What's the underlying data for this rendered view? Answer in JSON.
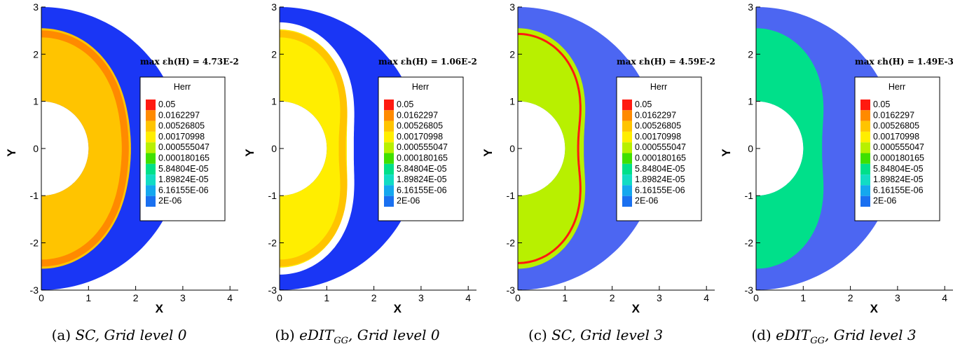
{
  "chart_data": [
    {
      "type": "heatmap",
      "annotation": "max εh(H) = 4.73E-2",
      "caption": {
        "label": "(a)",
        "method": "SC",
        "method_sub": "",
        "grid": "Grid level 0"
      },
      "xlabel": "X",
      "ylabel": "Y",
      "xlim": [
        0,
        4.3
      ],
      "ylim": [
        -3,
        3
      ],
      "xticks": [
        "0",
        "1",
        "2",
        "3",
        "4"
      ],
      "yticks": [
        "3",
        "2",
        "1",
        "0",
        "-1",
        "-2",
        "-3"
      ],
      "legend": {
        "title": "Herr",
        "levels": [
          "0.05",
          "0.0162297",
          "0.00526805",
          "0.00170998",
          "0.000555047",
          "0.000180165",
          "5.84804E-05",
          "1.89824E-05",
          "6.16155E-06",
          "2E-06"
        ]
      },
      "field": {
        "inner_radius": 1,
        "outer_radius": 3,
        "shock_radius_equator": 1.9,
        "mesh": "coarse",
        "gap": false,
        "interior_level_index": 2,
        "shock_level_index": 1
      }
    },
    {
      "type": "heatmap",
      "annotation": "max εh(H) = 1.06E-2",
      "caption": {
        "label": "(b)",
        "method": "eDIT",
        "method_sub": "GG",
        "grid": "Grid level 0"
      },
      "xlabel": "X",
      "ylabel": "Y",
      "xlim": [
        0,
        4.3
      ],
      "ylim": [
        -3,
        3
      ],
      "xticks": [
        "0",
        "1",
        "2",
        "3",
        "4"
      ],
      "yticks": [
        "3",
        "2",
        "1",
        "0",
        "-1",
        "-2",
        "-3"
      ],
      "legend": {
        "title": "Herr",
        "levels": [
          "0.05",
          "0.0162297",
          "0.00526805",
          "0.00170998",
          "0.000555047",
          "0.000180165",
          "5.84804E-05",
          "1.89824E-05",
          "6.16155E-06",
          "2E-06"
        ]
      },
      "field": {
        "inner_radius": 1,
        "outer_radius": 3,
        "shock_radius_equator": 1.45,
        "mesh": "coarse",
        "gap": true,
        "interior_level_index": 3,
        "shock_level_index": 2
      }
    },
    {
      "type": "heatmap",
      "annotation": "max εh(H) = 4.59E-2",
      "caption": {
        "label": "(c)",
        "method": "SC",
        "method_sub": "",
        "grid": "Grid level 3"
      },
      "xlabel": "X",
      "ylabel": "Y",
      "xlim": [
        0,
        4.3
      ],
      "ylim": [
        -3,
        3
      ],
      "xticks": [
        "0",
        "1",
        "2",
        "3",
        "4"
      ],
      "yticks": [
        "3",
        "2",
        "1",
        "0",
        "-1",
        "-2",
        "-3"
      ],
      "legend": {
        "title": "Herr",
        "levels": [
          "0.05",
          "0.0162297",
          "0.00526805",
          "0.00170998",
          "0.000555047",
          "0.000180165",
          "5.84804E-05",
          "1.89824E-05",
          "6.16155E-06",
          "2E-06"
        ]
      },
      "field": {
        "inner_radius": 1,
        "outer_radius": 3,
        "shock_radius_equator": 1.4,
        "mesh": "fine",
        "gap": false,
        "interior_level_index": 4,
        "shock_level_index": 0
      }
    },
    {
      "type": "heatmap",
      "annotation": "max εh(H) = 1.49E-3",
      "caption": {
        "label": "(d)",
        "method": "eDIT",
        "method_sub": "GG",
        "grid": "Grid level 3"
      },
      "xlabel": "X",
      "ylabel": "Y",
      "xlim": [
        0,
        4.3
      ],
      "ylim": [
        -3,
        3
      ],
      "xticks": [
        "0",
        "1",
        "2",
        "3",
        "4"
      ],
      "yticks": [
        "3",
        "2",
        "1",
        "0",
        "-1",
        "-2",
        "-3"
      ],
      "legend": {
        "title": "Herr",
        "levels": [
          "0.05",
          "0.0162297",
          "0.00526805",
          "0.00170998",
          "0.000555047",
          "0.000180165",
          "5.84804E-05",
          "1.89824E-05",
          "6.16155E-06",
          "2E-06"
        ]
      },
      "field": {
        "inner_radius": 1,
        "outer_radius": 3,
        "shock_radius_equator": 1.4,
        "mesh": "fine",
        "gap": false,
        "interior_level_index": 6,
        "shock_level_index": 6
      }
    }
  ],
  "colors": {
    "levels": [
      "#ff1a10",
      "#ff8a00",
      "#ffc400",
      "#ffee00",
      "#b8f000",
      "#3fe000",
      "#00e08a",
      "#12dcc4",
      "#15a8ee",
      "#1a70f0",
      "#1733ff"
    ],
    "outer_coarse": "#1a36f5",
    "outer_fine": "#4c66f2",
    "background": "#ffffff",
    "axis": "#000000"
  }
}
